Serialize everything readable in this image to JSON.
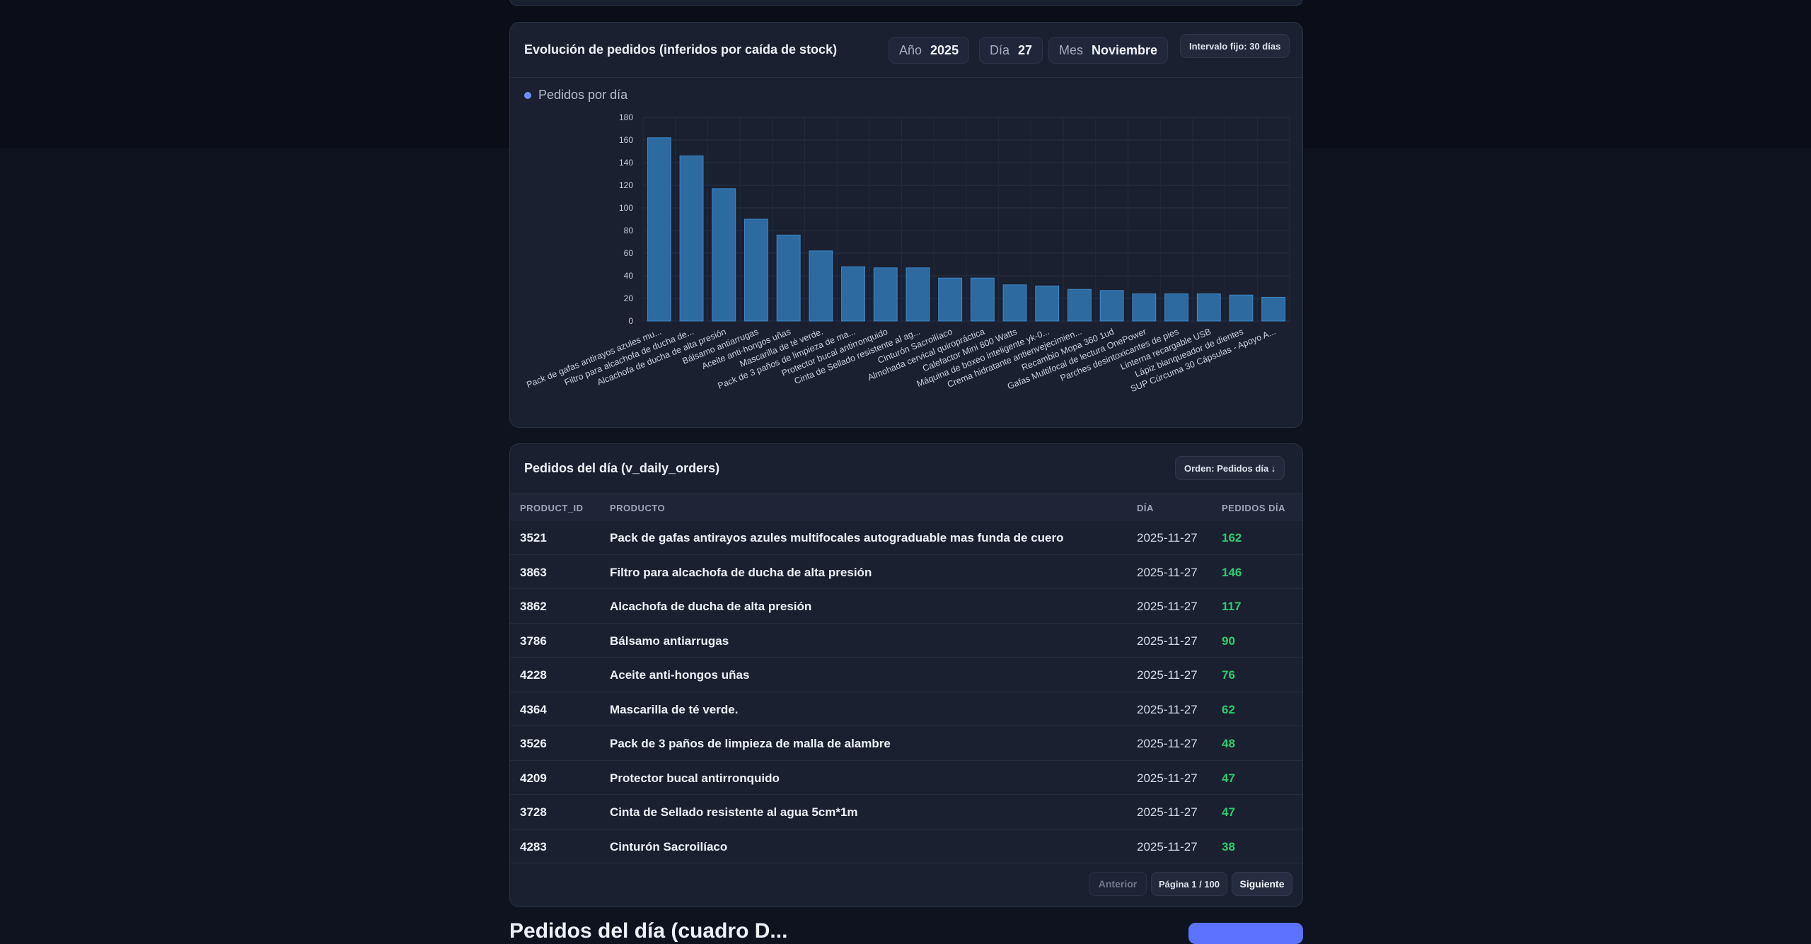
{
  "chart_section": {
    "title": "Evolución de pedidos (inferidos por caída de stock)",
    "filters": {
      "year_label": "Año",
      "year_value": "2025",
      "day_label": "Día",
      "day_value": "27",
      "month_label": "Mes",
      "month_value": "Noviembre"
    },
    "interval_badge": "Intervalo fijo: 30 días",
    "legend": "Pedidos por día",
    "accent_color": "#6e8cff",
    "bar_color": "#2d6aa0"
  },
  "chart_data": {
    "type": "bar",
    "title": "",
    "xlabel": "",
    "ylabel": "",
    "ylim": [
      0,
      180
    ],
    "yticks": [
      0,
      20,
      40,
      60,
      80,
      100,
      120,
      140,
      160,
      180
    ],
    "legend_position": "top-left",
    "grid": true,
    "categories": [
      "Pack de gafas antirayos azules mu...",
      "Filtro para alcachofa de ducha de...",
      "Alcachofa de ducha de alta presión",
      "Bálsamo antiarrugas",
      "Aceite anti-hongos uñas",
      "Mascarilla de té verde.",
      "Pack de 3 paños de limpieza de ma...",
      "Protector bucal antirronquido",
      "Cinta de Sellado resistente al ag...",
      "Cinturón Sacroilíaco",
      "Almohada cervical quiropráctica",
      "Calefactor Mini 800 Watts",
      "Máquina de boxeo inteligente yk-0...",
      "Crema hidratante antienvejecimien...",
      "Recambio Mopa 360 1ud",
      "Gafas Multifocal de lectura OnePower",
      "Parches desintoxicantes de pies",
      "Linterna recargable USB",
      "Lápiz blanqueador de dientes",
      "SUP Cúrcuma 30 Cápsulas - Apoyo A..."
    ],
    "series": [
      {
        "name": "Pedidos por día",
        "values": [
          162,
          146,
          117,
          90,
          76,
          62,
          48,
          47,
          47,
          38,
          38,
          32,
          31,
          28,
          27,
          24,
          24,
          24,
          23,
          21
        ]
      }
    ]
  },
  "table_section": {
    "title": "Pedidos del día (v_daily_orders)",
    "order_badge": "Orden: Pedidos día ↓",
    "columns": {
      "id": "PRODUCT_ID",
      "product": "PRODUCTO",
      "day": "DÍA",
      "qty": "PEDIDOS DÍA"
    },
    "rows": [
      {
        "id": "3521",
        "product": "Pack de gafas antirayos azules multifocales autograduable mas funda de cuero",
        "day": "2025-11-27",
        "qty": "162"
      },
      {
        "id": "3863",
        "product": "Filtro para alcachofa de ducha de alta presión",
        "day": "2025-11-27",
        "qty": "146"
      },
      {
        "id": "3862",
        "product": "Alcachofa de ducha de alta presión",
        "day": "2025-11-27",
        "qty": "117"
      },
      {
        "id": "3786",
        "product": "Bálsamo antiarrugas",
        "day": "2025-11-27",
        "qty": "90"
      },
      {
        "id": "4228",
        "product": "Aceite anti-hongos uñas",
        "day": "2025-11-27",
        "qty": "76"
      },
      {
        "id": "4364",
        "product": "Mascarilla de té verde.",
        "day": "2025-11-27",
        "qty": "62"
      },
      {
        "id": "3526",
        "product": "Pack de 3 paños de limpieza de malla de alambre",
        "day": "2025-11-27",
        "qty": "48"
      },
      {
        "id": "4209",
        "product": "Protector bucal antirronquido",
        "day": "2025-11-27",
        "qty": "47"
      },
      {
        "id": "3728",
        "product": "Cinta de Sellado resistente al agua 5cm*1m",
        "day": "2025-11-27",
        "qty": "47"
      },
      {
        "id": "4283",
        "product": "Cinturón Sacroilíaco",
        "day": "2025-11-27",
        "qty": "38"
      }
    ],
    "pager": {
      "prev": "Anterior",
      "info": "Página 1 / 100",
      "next": "Siguiente"
    }
  },
  "bottom_section": {
    "title": "Pedidos del día (cuadro D..."
  }
}
